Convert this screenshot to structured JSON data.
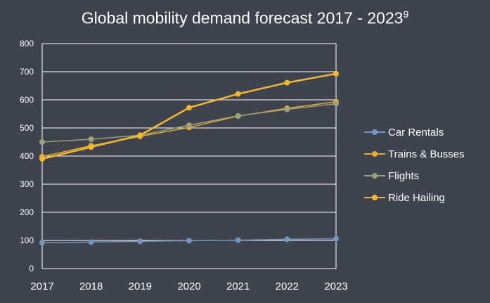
{
  "chart_data": {
    "type": "line",
    "title": "Global mobility demand forecast 2017 - 2023",
    "title_superscript": "9",
    "categories": [
      "2017",
      "2018",
      "2019",
      "2020",
      "2021",
      "2022",
      "2023"
    ],
    "ylim": [
      0,
      800
    ],
    "yticks": [
      "0",
      "100",
      "200",
      "300",
      "400",
      "500",
      "600",
      "700",
      "800"
    ],
    "grid": true,
    "legend_position": "right",
    "series": [
      {
        "name": "Car Rentals",
        "color": "#6f97bf",
        "values": [
          92,
          94,
          97,
          99,
          101,
          104,
          106
        ]
      },
      {
        "name": "Trains & Busses",
        "color": "#e4aa32",
        "values": [
          398,
          437,
          470,
          502,
          542,
          570,
          593
        ]
      },
      {
        "name": "Flights",
        "color": "#9aa07c",
        "values": [
          450,
          460,
          474,
          510,
          543,
          566,
          586
        ]
      },
      {
        "name": "Ride Hailing",
        "color": "#f2b830",
        "values": [
          390,
          432,
          474,
          572,
          621,
          661,
          693
        ]
      }
    ]
  }
}
